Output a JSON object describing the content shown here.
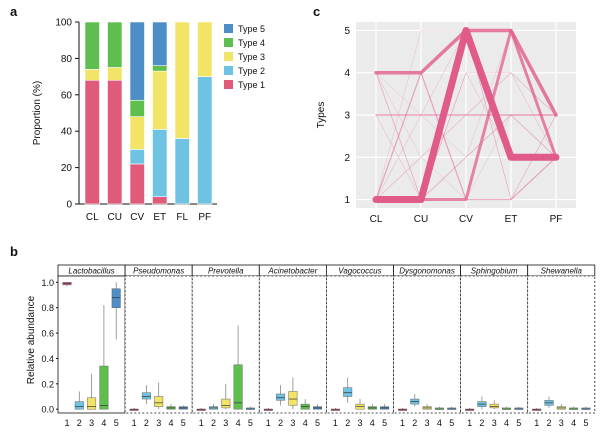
{
  "panels": {
    "a": "a",
    "b": "b",
    "c": "c"
  },
  "chart_data": [
    {
      "id": "a",
      "type": "bar",
      "stacked": true,
      "categories": [
        "CL",
        "CU",
        "CV",
        "ET",
        "FL",
        "PF"
      ],
      "ylabel": "Proportion (%)",
      "ylim": [
        0,
        100
      ],
      "yticks": [
        "0",
        "20",
        "40",
        "60",
        "80",
        "100"
      ],
      "legend_position": "right",
      "series": [
        {
          "name": "Type 1",
          "color": "#e05a7a",
          "values": [
            68,
            68,
            22,
            4,
            0,
            0
          ]
        },
        {
          "name": "Type 2",
          "color": "#6ec3e3",
          "values": [
            0,
            0,
            8,
            37,
            36,
            70
          ]
        },
        {
          "name": "Type 3",
          "color": "#f2e466",
          "values": [
            6,
            7,
            18,
            32,
            64,
            30
          ]
        },
        {
          "name": "Type 4",
          "color": "#5fbf4e",
          "values": [
            26,
            25,
            9,
            3,
            0,
            0
          ]
        },
        {
          "name": "Type 5",
          "color": "#4d8ec6",
          "values": [
            0,
            0,
            43,
            24,
            0,
            0
          ]
        }
      ]
    },
    {
      "id": "c",
      "type": "line",
      "categories": [
        "CL",
        "CU",
        "CV",
        "ET",
        "PF"
      ],
      "ylabel": "Types",
      "ylim": [
        0.8,
        5.2
      ],
      "yticks": [
        "1",
        "2",
        "3",
        "4",
        "5"
      ],
      "grid": true,
      "color": "#e05a8a",
      "flows": [
        {
          "path": [
            1,
            1,
            5,
            2,
            2
          ],
          "weight": 7
        },
        {
          "path": [
            4,
            4,
            5,
            5,
            3
          ],
          "weight": 3.5
        },
        {
          "path": [
            1,
            1,
            1,
            5,
            2
          ],
          "weight": 3
        },
        {
          "path": [
            3,
            3,
            3,
            3,
            3
          ],
          "weight": 1.5
        },
        {
          "path": [
            1,
            4,
            1,
            1,
            2
          ],
          "weight": 1.2
        },
        {
          "path": [
            4,
            1,
            2,
            3,
            2
          ],
          "weight": 0.8
        },
        {
          "path": [
            1,
            2,
            3,
            4,
            3
          ],
          "weight": 0.6
        },
        {
          "path": [
            3,
            1,
            4,
            2,
            2
          ],
          "weight": 0.5
        },
        {
          "path": [
            1,
            3,
            5,
            1,
            3
          ],
          "weight": 0.5
        },
        {
          "path": [
            4,
            3,
            2,
            5,
            2
          ],
          "weight": 0.4
        },
        {
          "path": [
            1,
            5,
            5,
            1,
            3
          ],
          "weight": 0.4
        },
        {
          "path": [
            4,
            2,
            1,
            3,
            3
          ],
          "weight": 0.4
        },
        {
          "path": [
            1,
            1,
            4,
            4,
            2
          ],
          "weight": 0.5
        }
      ]
    },
    {
      "id": "b",
      "type": "boxplot",
      "ylabel": "Relative abundance",
      "ylim": [
        -0.03,
        1.05
      ],
      "yticks": [
        "0.0",
        "0.2",
        "0.4",
        "0.6",
        "0.8",
        "1.0"
      ],
      "x_categories": [
        "1",
        "2",
        "3",
        "4",
        "5"
      ],
      "colors": [
        "#e05a7a",
        "#6ec3e3",
        "#f2e466",
        "#5fbf4e",
        "#4d8ec6"
      ],
      "facets": [
        {
          "name": "Lactobacillus",
          "boxes": [
            {
              "q1": 0.98,
              "med": 0.99,
              "q3": 1.0,
              "wlo": 0.97,
              "whi": 1.0
            },
            {
              "q1": 0.0,
              "med": 0.02,
              "q3": 0.06,
              "wlo": 0.0,
              "whi": 0.14
            },
            {
              "q1": 0.0,
              "med": 0.02,
              "q3": 0.09,
              "wlo": 0.0,
              "whi": 0.28
            },
            {
              "q1": 0.0,
              "med": 0.03,
              "q3": 0.34,
              "wlo": 0.0,
              "whi": 0.82
            },
            {
              "q1": 0.8,
              "med": 0.88,
              "q3": 0.95,
              "wlo": 0.55,
              "whi": 1.0
            }
          ]
        },
        {
          "name": "Pseudomonas",
          "boxes": [
            {
              "q1": 0.0,
              "med": 0.0,
              "q3": 0.0,
              "wlo": 0.0,
              "whi": 0.01
            },
            {
              "q1": 0.08,
              "med": 0.1,
              "q3": 0.13,
              "wlo": 0.04,
              "whi": 0.19
            },
            {
              "q1": 0.02,
              "med": 0.05,
              "q3": 0.1,
              "wlo": 0.0,
              "whi": 0.21
            },
            {
              "q1": 0.0,
              "med": 0.01,
              "q3": 0.02,
              "wlo": 0.0,
              "whi": 0.04
            },
            {
              "q1": 0.0,
              "med": 0.01,
              "q3": 0.02,
              "wlo": 0.0,
              "whi": 0.03
            }
          ]
        },
        {
          "name": "Prevotella",
          "boxes": [
            {
              "q1": 0.0,
              "med": 0.0,
              "q3": 0.0,
              "wlo": 0.0,
              "whi": 0.01
            },
            {
              "q1": 0.0,
              "med": 0.01,
              "q3": 0.02,
              "wlo": 0.0,
              "whi": 0.04
            },
            {
              "q1": 0.01,
              "med": 0.03,
              "q3": 0.08,
              "wlo": 0.0,
              "whi": 0.2
            },
            {
              "q1": 0.0,
              "med": 0.05,
              "q3": 0.35,
              "wlo": 0.0,
              "whi": 0.66
            },
            {
              "q1": 0.0,
              "med": 0.0,
              "q3": 0.01,
              "wlo": 0.0,
              "whi": 0.02
            }
          ]
        },
        {
          "name": "Acinetobacter",
          "boxes": [
            {
              "q1": 0.0,
              "med": 0.0,
              "q3": 0.0,
              "wlo": 0.0,
              "whi": 0.01
            },
            {
              "q1": 0.07,
              "med": 0.09,
              "q3": 0.12,
              "wlo": 0.03,
              "whi": 0.19
            },
            {
              "q1": 0.03,
              "med": 0.08,
              "q3": 0.14,
              "wlo": 0.0,
              "whi": 0.25
            },
            {
              "q1": 0.0,
              "med": 0.02,
              "q3": 0.04,
              "wlo": 0.0,
              "whi": 0.08
            },
            {
              "q1": 0.0,
              "med": 0.01,
              "q3": 0.02,
              "wlo": 0.0,
              "whi": 0.04
            }
          ]
        },
        {
          "name": "Vagococcus",
          "boxes": [
            {
              "q1": 0.0,
              "med": 0.0,
              "q3": 0.0,
              "wlo": 0.0,
              "whi": 0.01
            },
            {
              "q1": 0.1,
              "med": 0.13,
              "q3": 0.17,
              "wlo": 0.05,
              "whi": 0.25
            },
            {
              "q1": 0.0,
              "med": 0.02,
              "q3": 0.04,
              "wlo": 0.0,
              "whi": 0.08
            },
            {
              "q1": 0.0,
              "med": 0.01,
              "q3": 0.02,
              "wlo": 0.0,
              "whi": 0.04
            },
            {
              "q1": 0.0,
              "med": 0.01,
              "q3": 0.02,
              "wlo": 0.0,
              "whi": 0.04
            }
          ]
        },
        {
          "name": "Dysgonomonas",
          "boxes": [
            {
              "q1": 0.0,
              "med": 0.0,
              "q3": 0.0,
              "wlo": 0.0,
              "whi": 0.01
            },
            {
              "q1": 0.04,
              "med": 0.06,
              "q3": 0.08,
              "wlo": 0.02,
              "whi": 0.12
            },
            {
              "q1": 0.0,
              "med": 0.01,
              "q3": 0.02,
              "wlo": 0.0,
              "whi": 0.04
            },
            {
              "q1": 0.0,
              "med": 0.0,
              "q3": 0.01,
              "wlo": 0.0,
              "whi": 0.02
            },
            {
              "q1": 0.0,
              "med": 0.0,
              "q3": 0.01,
              "wlo": 0.0,
              "whi": 0.02
            }
          ]
        },
        {
          "name": "Sphingobium",
          "boxes": [
            {
              "q1": 0.0,
              "med": 0.0,
              "q3": 0.0,
              "wlo": 0.0,
              "whi": 0.01
            },
            {
              "q1": 0.02,
              "med": 0.04,
              "q3": 0.06,
              "wlo": 0.0,
              "whi": 0.1
            },
            {
              "q1": 0.01,
              "med": 0.02,
              "q3": 0.04,
              "wlo": 0.0,
              "whi": 0.07
            },
            {
              "q1": 0.0,
              "med": 0.0,
              "q3": 0.01,
              "wlo": 0.0,
              "whi": 0.02
            },
            {
              "q1": 0.0,
              "med": 0.0,
              "q3": 0.01,
              "wlo": 0.0,
              "whi": 0.02
            }
          ]
        },
        {
          "name": "Shewanella",
          "boxes": [
            {
              "q1": 0.0,
              "med": 0.0,
              "q3": 0.0,
              "wlo": 0.0,
              "whi": 0.01
            },
            {
              "q1": 0.03,
              "med": 0.05,
              "q3": 0.07,
              "wlo": 0.01,
              "whi": 0.1
            },
            {
              "q1": 0.0,
              "med": 0.01,
              "q3": 0.02,
              "wlo": 0.0,
              "whi": 0.04
            },
            {
              "q1": 0.0,
              "med": 0.0,
              "q3": 0.01,
              "wlo": 0.0,
              "whi": 0.02
            },
            {
              "q1": 0.0,
              "med": 0.0,
              "q3": 0.01,
              "wlo": 0.0,
              "whi": 0.02
            }
          ]
        }
      ]
    }
  ]
}
